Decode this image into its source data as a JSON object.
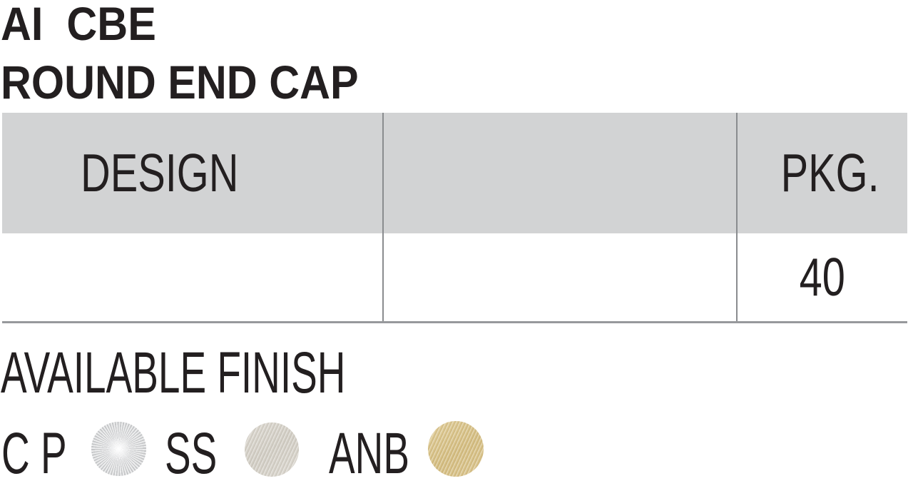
{
  "page": {
    "title_line1": "AI  CBE",
    "title_line2": "ROUND END CAP"
  },
  "table": {
    "columns": [
      {
        "id": "design",
        "label": "DESIGN"
      },
      {
        "id": "illustration",
        "label": ""
      },
      {
        "id": "pkg",
        "label": "PKG."
      }
    ],
    "rows": [
      {
        "design": "",
        "illustration": "",
        "pkg": "40"
      }
    ]
  },
  "finish": {
    "heading": "AVAILABLE FINISH",
    "options": [
      {
        "code": "C P",
        "name": "polished-chrome",
        "color": "#d7d8da"
      },
      {
        "code": "SS",
        "name": "stainless-steel",
        "color": "#d6d2c9"
      },
      {
        "code": "ANB",
        "name": "antique-brass",
        "color": "#d9c48d"
      }
    ]
  },
  "colors": {
    "text": "#231f20",
    "table_header_bg": "#d2d3d4",
    "table_divider": "#8a8c8f",
    "table_bottom_border": "#97999c",
    "page_bg": "#ffffff"
  }
}
